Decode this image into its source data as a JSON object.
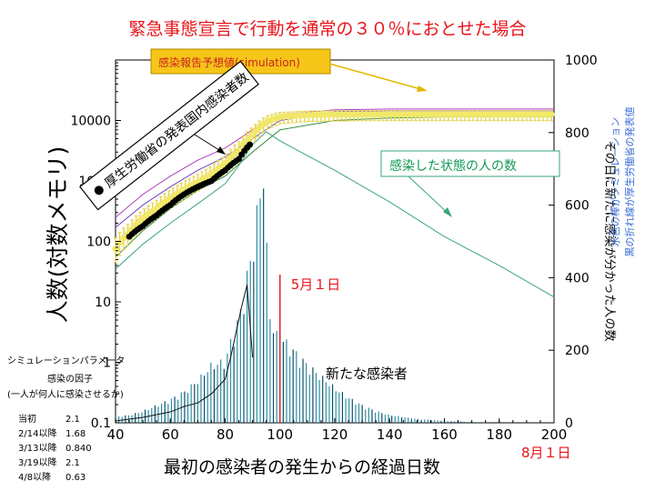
{
  "colors": {
    "title": "#e8141a",
    "histogram_bar": "#2f8fa5",
    "histogram_bar_dark": "#0d4f66",
    "model_line": "#3aa677",
    "simulation_points": "#f1e86a",
    "simulation_error": "#e4d24c",
    "reported_points": "#000000",
    "upper_line_magenta": "#b43cc0",
    "upper_line_purple": "#6f45c8",
    "upper_line_green": "#2e8b3a",
    "may1_line": "#d92a2a",
    "callout_box": "#f5c518",
    "callout_text": "#cc2222",
    "green_label": "#119955",
    "right_annotation_text": "#3b6fd4"
  },
  "chart_data": {
    "type": "line",
    "title": "緊急事態宣言で行動を通常の３０％におとせた場合",
    "xlabel": "最初の感染者の発生からの経過日数",
    "ylabel_left": "人数(対数メモリ)",
    "ylabel_right": "その日に新たに感染が分かった人の数",
    "xlim": [
      40,
      200
    ],
    "ylim_left_log": [
      0.1,
      100000
    ],
    "ylim_right": [
      0,
      1000
    ],
    "x_ticks": [
      40,
      60,
      80,
      100,
      120,
      140,
      160,
      180,
      200
    ],
    "y_left_ticks": [
      {
        "value": 0.1,
        "label": "0.1"
      },
      {
        "value": 1,
        "label": "1"
      },
      {
        "value": 10,
        "label": "10"
      },
      {
        "value": 100,
        "label": "100"
      },
      {
        "value": 1000,
        "label": "1000"
      },
      {
        "value": 10000,
        "label": "10000"
      }
    ],
    "y_right_ticks": [
      0,
      200,
      400,
      600,
      800,
      1000
    ],
    "grid": false,
    "series": [
      {
        "name": "感染報告予想値(simulation)",
        "kind": "points_with_error",
        "axis": "left",
        "x": [
          40,
          45,
          50,
          55,
          60,
          65,
          70,
          75,
          80,
          85,
          90,
          95,
          100,
          110,
          120,
          130,
          140,
          150,
          160,
          170,
          180,
          190,
          200
        ],
        "y": [
          75,
          140,
          240,
          350,
          520,
          720,
          950,
          1300,
          1900,
          3200,
          5800,
          9500,
          11500,
          12300,
          12500,
          12600,
          12600,
          12600,
          12600,
          12600,
          12600,
          12600,
          12600
        ],
        "err_low": [
          45,
          90,
          160,
          240,
          360,
          500,
          680,
          920,
          1300,
          2100,
          3800,
          7000,
          8800,
          9600,
          9800,
          9900,
          9900,
          9900,
          9900,
          9900,
          9900,
          9900,
          9900
        ],
        "err_high": [
          115,
          200,
          330,
          480,
          710,
          980,
          1280,
          1750,
          2600,
          4500,
          7800,
          11800,
          13600,
          14300,
          14500,
          14600,
          14600,
          14600,
          14600,
          14600,
          14600,
          14600,
          14600
        ]
      },
      {
        "name": "厚生労働省の発表国内感染者数",
        "kind": "points",
        "axis": "left",
        "x": [
          45,
          50,
          55,
          60,
          65,
          70,
          75,
          80,
          85,
          89
        ],
        "y": [
          120,
          180,
          270,
          400,
          600,
          800,
          1000,
          1500,
          2300,
          4000
        ]
      },
      {
        "name": "",
        "kind": "line",
        "axis": "left",
        "style": "magenta",
        "x": [
          40,
          50,
          60,
          70,
          80,
          90,
          100,
          120,
          140,
          160,
          180,
          200
        ],
        "y": [
          250,
          600,
          1200,
          2200,
          3500,
          7000,
          12500,
          15000,
          15500,
          15500,
          15500,
          15500
        ]
      },
      {
        "name": "",
        "kind": "line",
        "axis": "left",
        "style": "purple",
        "x": [
          40,
          50,
          60,
          70,
          80,
          90,
          100,
          120,
          140,
          160,
          180,
          200
        ],
        "y": [
          170,
          400,
          800,
          1500,
          2500,
          5000,
          10000,
          14000,
          14500,
          14500,
          14500,
          14500
        ]
      },
      {
        "name": "",
        "kind": "line",
        "axis": "left",
        "style": "green",
        "x": [
          40,
          50,
          60,
          70,
          80,
          90,
          100,
          120,
          140,
          160,
          180,
          200
        ],
        "y": [
          55,
          150,
          350,
          700,
          1200,
          3000,
          7000,
          10000,
          11000,
          11500,
          11500,
          11500
        ]
      },
      {
        "name": "感染した状態の人の数",
        "kind": "line",
        "axis": "left",
        "style": "model",
        "x": [
          40,
          50,
          60,
          70,
          80,
          85,
          90,
          95,
          100,
          120,
          140,
          160,
          180,
          200
        ],
        "y": [
          35,
          90,
          200,
          420,
          900,
          1800,
          4000,
          6500,
          4600,
          1500,
          450,
          120,
          40,
          12
        ]
      },
      {
        "name": "新たな感染者",
        "kind": "histogram_simulated",
        "axis": "right",
        "x": [
          40,
          45,
          50,
          55,
          60,
          65,
          70,
          75,
          80,
          82,
          84,
          86,
          88,
          90,
          92,
          94,
          95,
          96,
          98,
          100,
          102,
          104,
          106,
          108,
          110,
          115,
          120,
          125,
          130,
          135,
          140,
          150,
          160,
          170,
          180,
          190,
          200
        ],
        "y": [
          15,
          20,
          30,
          45,
          60,
          80,
          110,
          150,
          160,
          210,
          250,
          300,
          380,
          450,
          560,
          660,
          480,
          300,
          230,
          220,
          210,
          195,
          180,
          165,
          150,
          120,
          90,
          65,
          45,
          30,
          20,
          10,
          5,
          2,
          1,
          0,
          0
        ]
      },
      {
        "name": "",
        "kind": "line",
        "axis": "right",
        "style": "reported_daily",
        "x": [
          40,
          50,
          60,
          65,
          70,
          75,
          80,
          82,
          84,
          86,
          88,
          89,
          90
        ],
        "y": [
          5,
          15,
          30,
          45,
          55,
          80,
          120,
          180,
          250,
          320,
          380,
          280,
          180
        ]
      }
    ],
    "annotations": [
      {
        "text": "5月１日",
        "x": 100
      },
      {
        "text": "8月１日",
        "x": 200
      },
      {
        "text": "新たな感染者",
        "x": 128,
        "y_right": 130
      }
    ],
    "callouts": {
      "simulation": "感染報告予想値(simulation)",
      "reported": "厚生労働省の発表国内感染者数",
      "infected": "感染した状態の人の数"
    },
    "right_notes": [
      "水色の棒がシミュレーション",
      "黒の折れ線が厚生労働省の発表値"
    ]
  },
  "params": {
    "heading": "シミュレーションパラメータ",
    "factor_label": "感染の因子",
    "factor_note": "(一人が何人に感染させるか)",
    "rows": [
      {
        "label": "当初",
        "value": "2.1"
      },
      {
        "label": "2/14以降",
        "value": "1.68"
      },
      {
        "label": "3/13以降",
        "value": "0.840"
      },
      {
        "label": "3/19以降",
        "value": "2.1"
      },
      {
        "label": "4/8以降",
        "value": "0.63"
      }
    ]
  }
}
